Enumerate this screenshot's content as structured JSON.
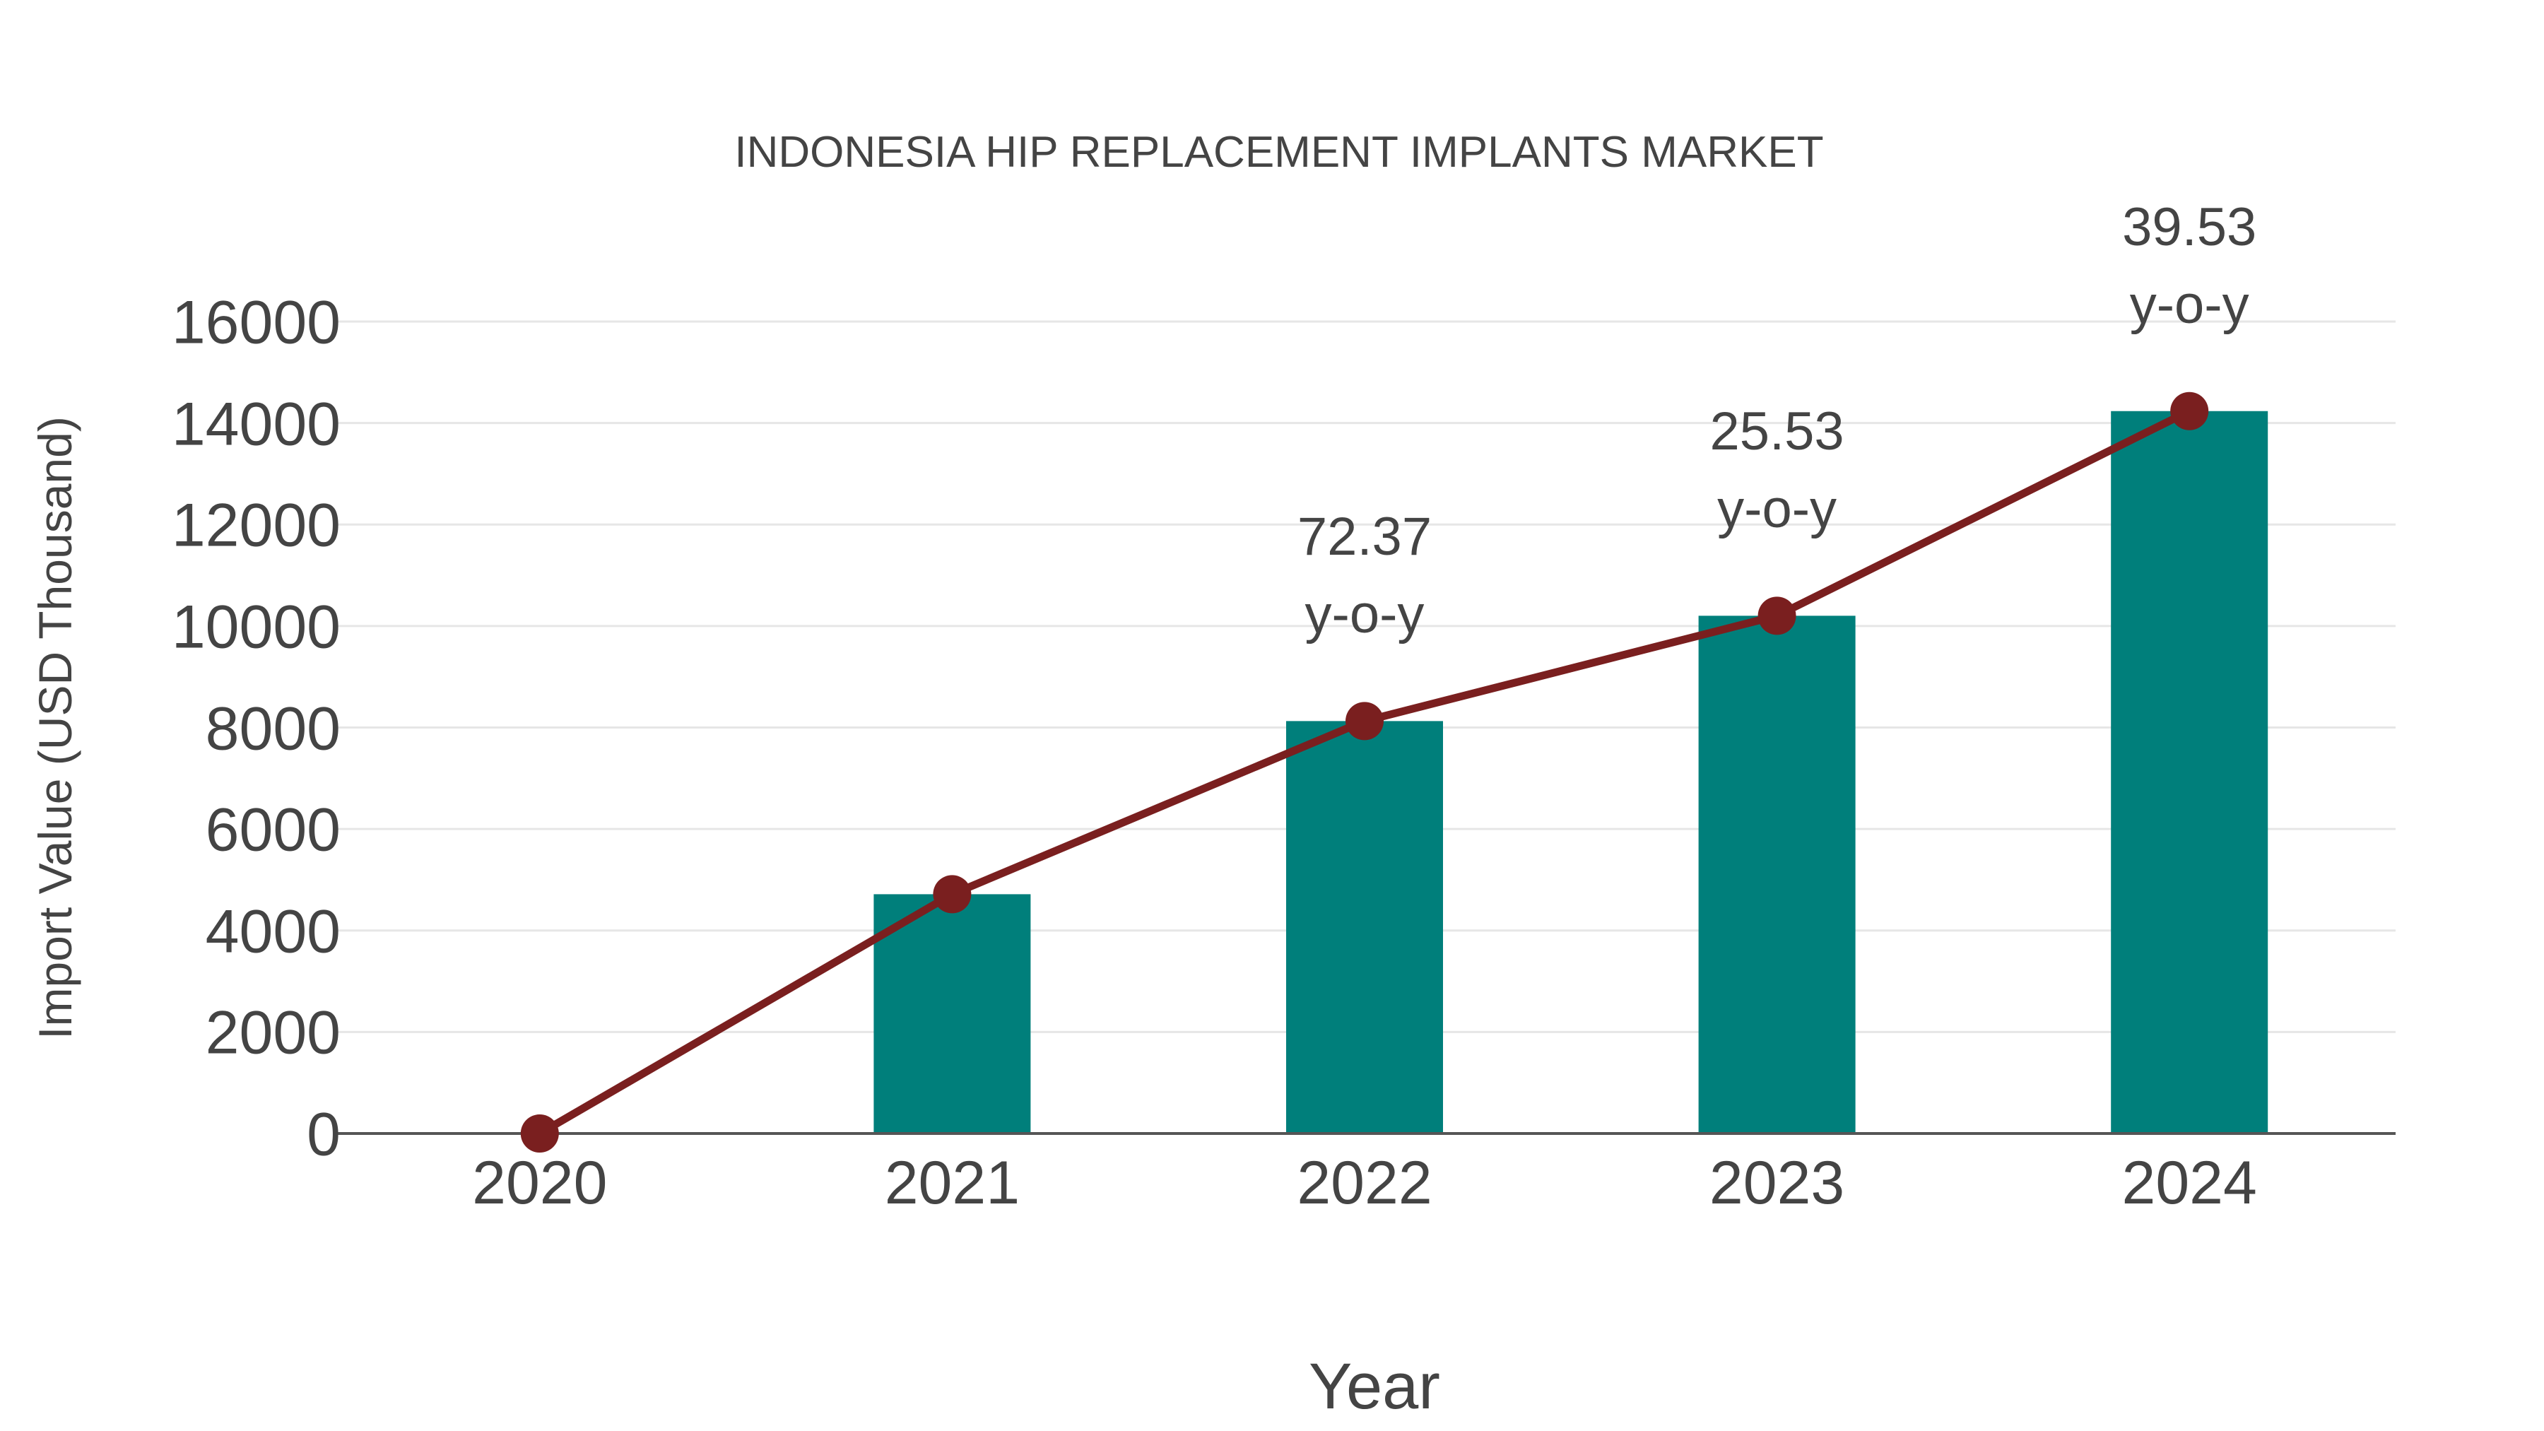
{
  "chart_data": {
    "type": "bar+line",
    "title": "INDONESIA HIP REPLACEMENT IMPLANTS MARKET",
    "xlabel": "Year",
    "ylabel": "Import Value (USD Thousand)",
    "categories": [
      "2020",
      "2021",
      "2022",
      "2023",
      "2024"
    ],
    "series": [
      {
        "name": "Import Value",
        "type": "bar",
        "color": "#007f7b",
        "values": [
          0,
          4715,
          8127,
          10202,
          14235
        ]
      },
      {
        "name": "Trend",
        "type": "line",
        "color": "#7a1f1f",
        "values": [
          0,
          4715,
          8127,
          10202,
          14235
        ]
      }
    ],
    "annotations": [
      {
        "category": "2022",
        "value": "72.37",
        "suffix": "y-o-y"
      },
      {
        "category": "2023",
        "value": "25.53",
        "suffix": "y-o-y"
      },
      {
        "category": "2024",
        "value": "39.53",
        "suffix": "y-o-y"
      }
    ],
    "yticks": [
      "0",
      "2000",
      "4000",
      "6000",
      "8000",
      "10000",
      "12000",
      "14000",
      "16000"
    ],
    "ylim": [
      0,
      16000
    ],
    "grid": true,
    "legend": "none"
  },
  "colors": {
    "bar": "#007f7b",
    "line": "#7a1f1f",
    "grid": "#e6e6e6",
    "axis": "#555555",
    "text": "#444444"
  }
}
